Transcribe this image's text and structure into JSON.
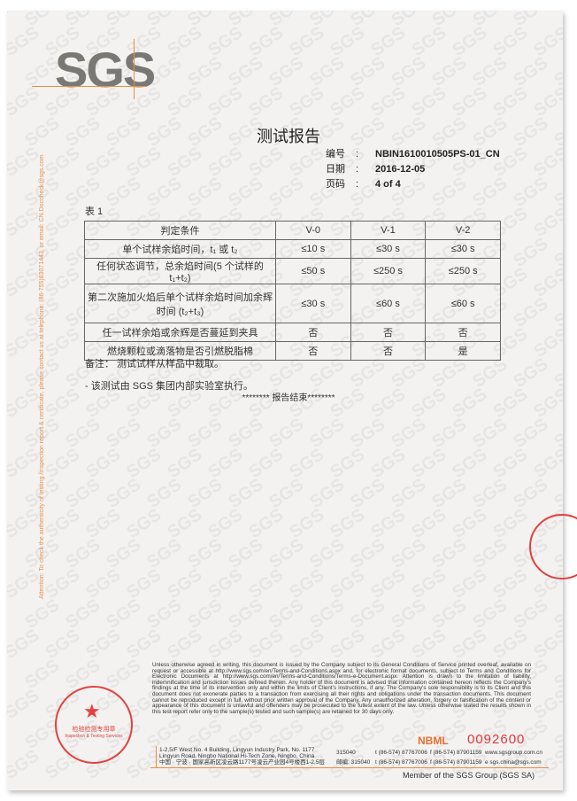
{
  "header": {
    "logo": "SGS",
    "title": "测试报告",
    "meta": [
      {
        "key": "编号",
        "value": "NBIN1610010505PS-01_CN"
      },
      {
        "key": "日期",
        "value": "2016-12-05"
      },
      {
        "key": "页码",
        "value": "4 of 4"
      }
    ]
  },
  "side_notice": "Attention: To check the authenticity of testing /inspection report & certificate, please contact us at telephone: (86-755)83071443, or email: CN.Doccheck@sgs.com",
  "table": {
    "caption": "表 1",
    "headers": [
      "判定条件",
      "V-0",
      "V-1",
      "V-2"
    ],
    "rows": [
      [
        "单个试样余焰时间，t₁ 或 t₂",
        "≤10 s",
        "≤30 s",
        "≤30 s"
      ],
      [
        "任何状态调节，总余焰时间(5 个试样的 t₁+t₂)",
        "≤50 s",
        "≤250 s",
        "≤250 s"
      ],
      [
        "第二次施加火焰后单个试样余焰时间加余辉时间 (t₂+t₃)",
        "≤30 s",
        "≤60 s",
        "≤60 s"
      ],
      [
        "任一试样余焰或余辉是否蔓延到夹具",
        "否",
        "否",
        "否"
      ],
      [
        "燃烧颗粒或滴落物是否引燃脱脂棉",
        "否",
        "否",
        "是"
      ]
    ]
  },
  "note": "备注：  测试试样从样品中裁取。",
  "bullet": "-     该测试由 SGS 集团内部实验室执行。",
  "end_mark": "******** 报告结束********",
  "terms": "Unless otherwise agreed in writing, this document is issued by the Company subject to its General Conditions of Service printed overleaf, available on request or accessible at http://www.sgs.com/en/Terms-and-Conditions.aspx and, for electronic format documents, subject to Terms and Conditions for Electronic Documents at http://www.sgs.com/en/Terms-and-Conditions/Terms-e-Document.aspx. Attention is drawn to the limitation of liability, indemnification and jurisdiction issues defined therein. Any holder of this document is advised that information contained hereon reflects the Company's findings at the time of its intervention only and within the limits of Client's instructions, if any. The Company's sole responsibility is to its Client and this document does not exonerate parties to a transaction from exercising all their rights and obligations under the transaction documents. This document cannot be reproduced except in full, without prior written approval of the Company. Any unauthorized alteration, forgery or falsification of the content or appearance of this document is unlawful and offenders may be prosecuted to the fullest extent of the law. Unless otherwise stated the results shown in this test report refer only to the sample(s) tested and such sample(s) are retained for 30 days only.",
  "nbml": "NBML",
  "serial": "0092600",
  "address": [
    {
      "addr": "1-2,5/F West No. 4 Building, Lingyun Industry Park, No. 1177 Lingyun Road, Ningbo National Hi-Tech Zone, Ningbo, China",
      "post": "315040",
      "tel": "t  (86-574) 87767006",
      "fax": "f  (86-574) 87901159",
      "web": "www.sgsgroup.com.cn"
    },
    {
      "addr": "中国 · 宁波 · 国家高新区凌云路1177号凌云产业园4号楼西1-2,5层",
      "post": "邮编: 315040",
      "tel": "t  (86-574) 87767006",
      "fax": "f  (86-574) 87901159",
      "web": "e  sgs.china@sgs.com"
    }
  ],
  "member": "Member of the SGS Group (SGS SA)",
  "stamp": {
    "text": "检验检测专用章",
    "sub": "Inspection & Testing Services"
  },
  "colors": {
    "accent": "#f08a3c",
    "stamp": "#e3413f",
    "logo": "#7a7873"
  }
}
